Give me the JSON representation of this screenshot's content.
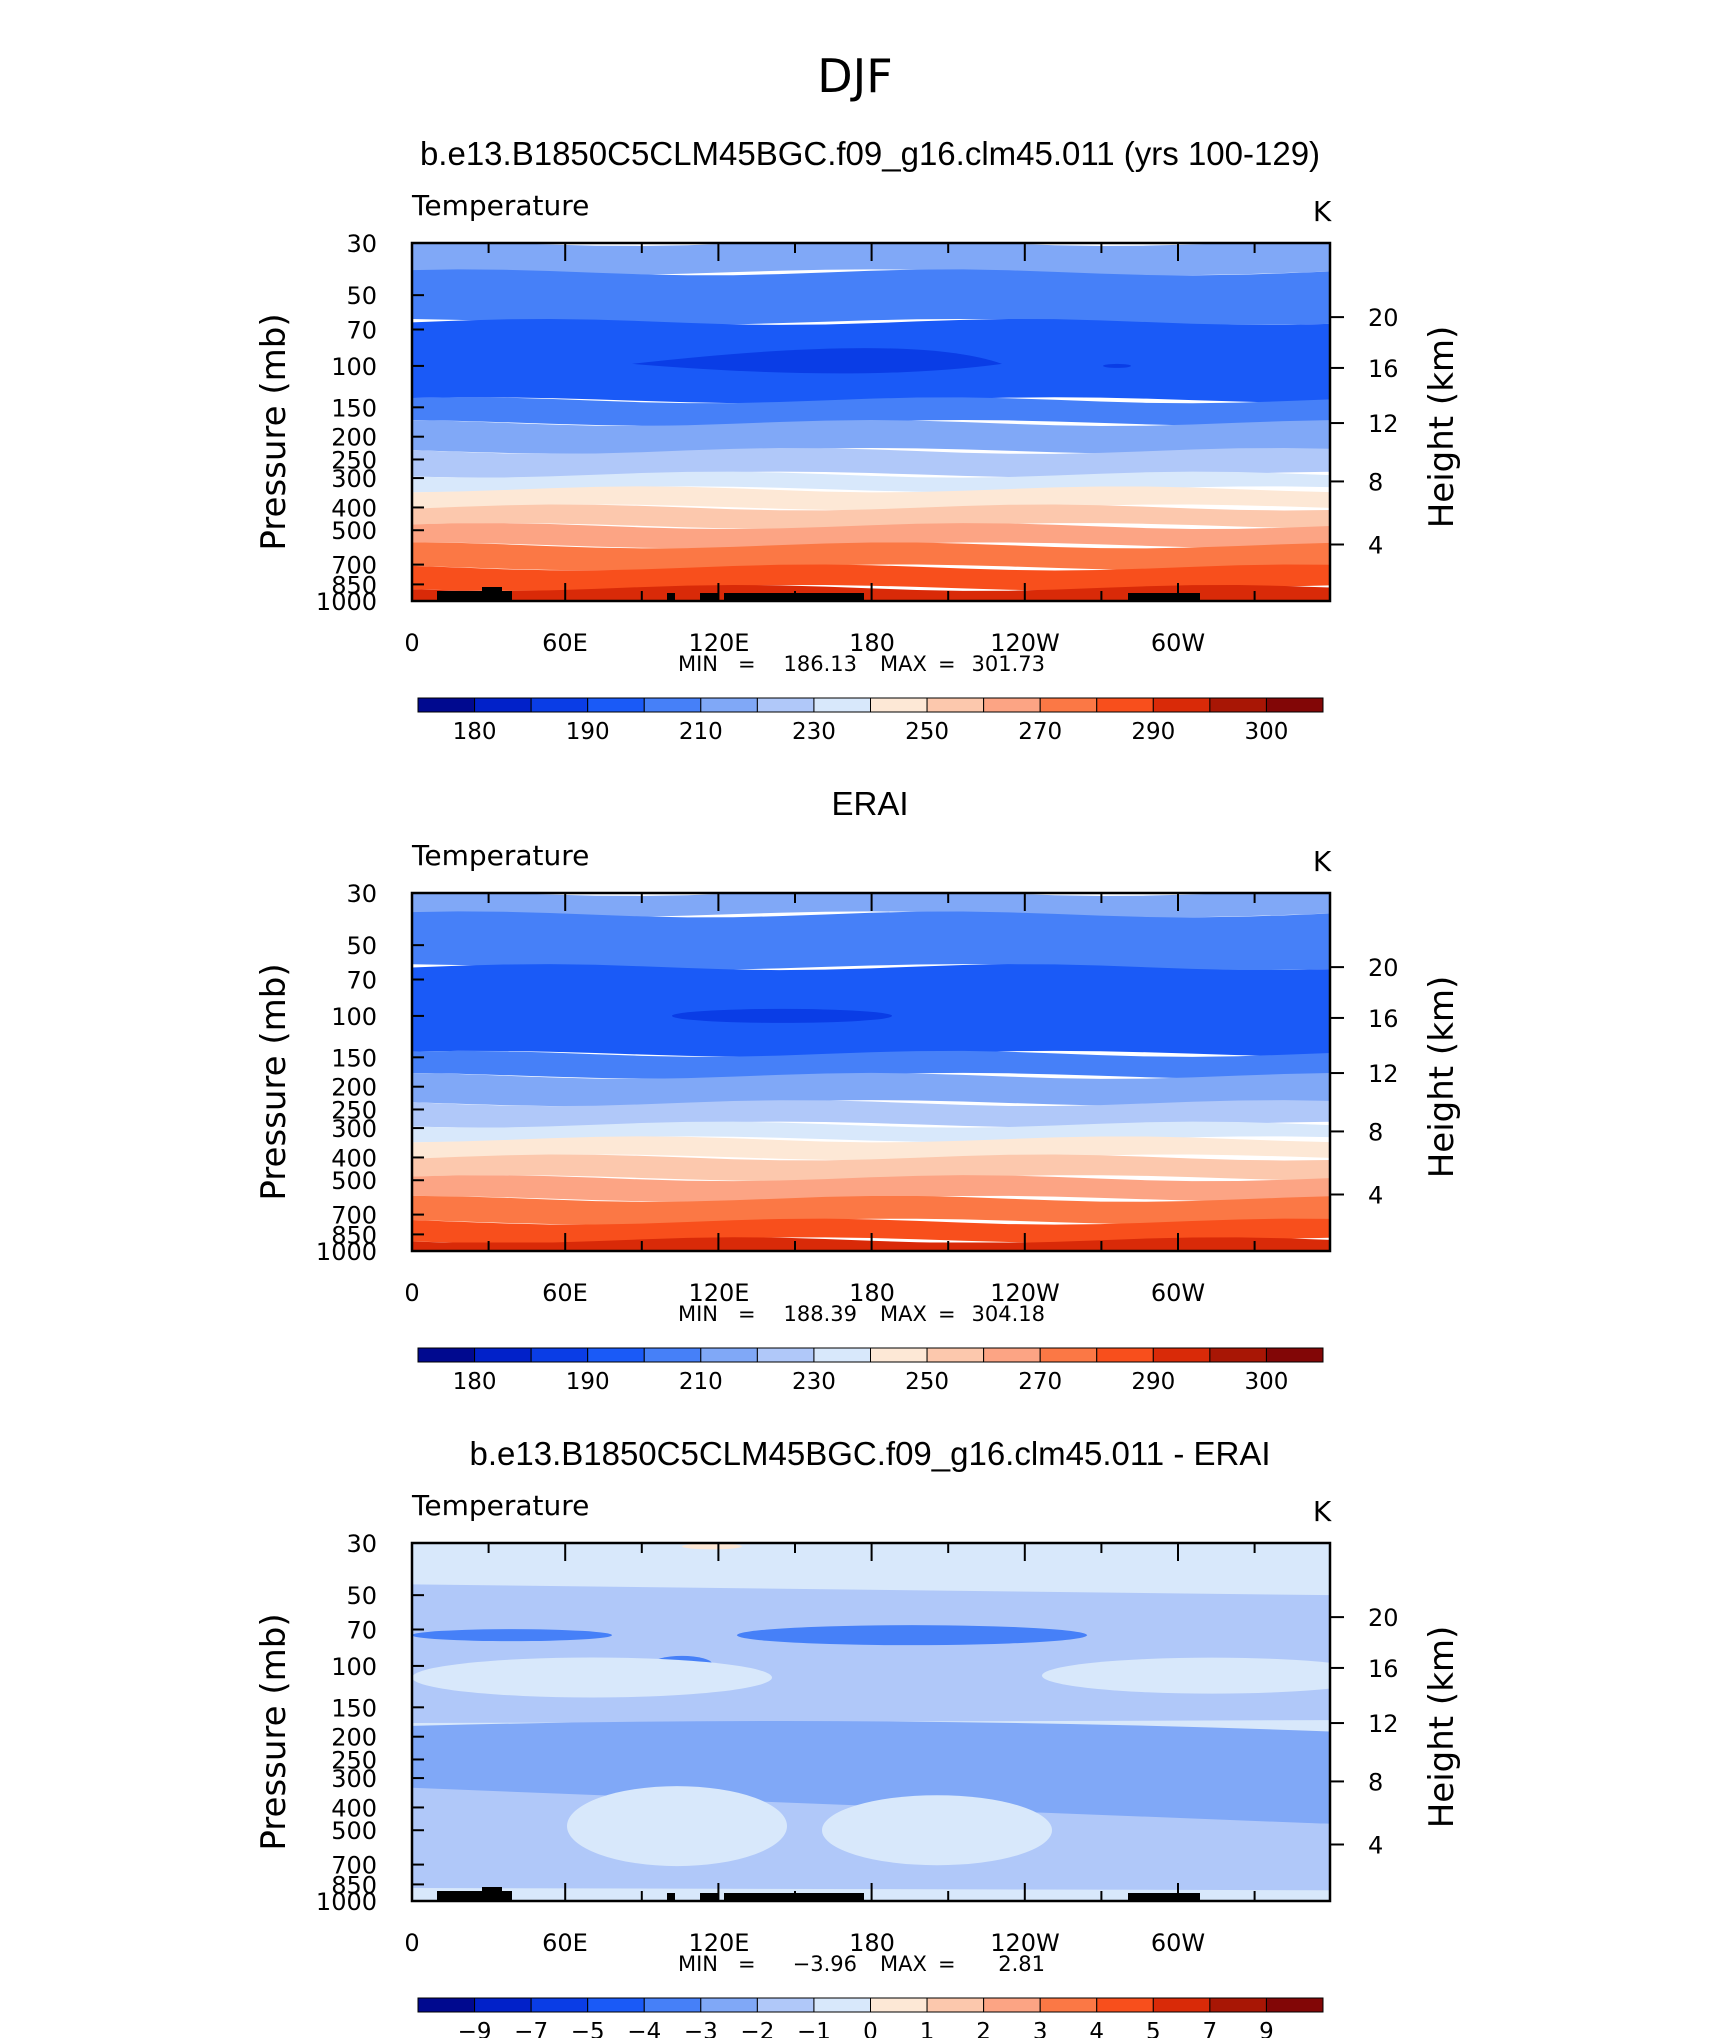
{
  "page_title": "DJF",
  "chart_data": [
    {
      "type": "heatmap",
      "title": "b.e13.B1850C5CLM45BGC.f09_g16.clm45.011 (yrs 100-129)",
      "left_label": "Temperature",
      "right_label": "K",
      "ylabel": "Pressure (mb)",
      "y2label": "Height (km)",
      "pressure_levels": [
        "30",
        "50",
        "70",
        "100",
        "150",
        "200",
        "250",
        "300",
        "400",
        "500",
        "700",
        "850",
        "1000"
      ],
      "height_ticks": [
        "20",
        "16",
        "12",
        "8",
        "4"
      ],
      "x_ticks": [
        "0",
        "60E",
        "120E",
        "180",
        "120W",
        "60W"
      ],
      "min_label": "MIN",
      "min_value": "186.13",
      "max_label": "MAX",
      "max_value": "301.73",
      "colorbar": {
        "colors": [
          "#00098f",
          "#0121c9",
          "#0a3de6",
          "#1a5af7",
          "#4680f8",
          "#80a8f7",
          "#b0c8f9",
          "#d8e8fb",
          "#fde8d6",
          "#fcc8ad",
          "#fca484",
          "#fb7845",
          "#f84f1c",
          "#d92a08",
          "#a81605",
          "#820606"
        ],
        "labels": [
          "180",
          "190",
          "210",
          "230",
          "250",
          "270",
          "290",
          "300"
        ],
        "label_boundaries": [
          1,
          3,
          5,
          7,
          9,
          11,
          13,
          15
        ]
      },
      "bands": [
        {
          "p": "30-40",
          "color": "#80a8f7"
        },
        {
          "p": "40-65",
          "color": "#4680f8"
        },
        {
          "p": "65-140",
          "color": "#1a5af7"
        },
        {
          "p": "78-115 (150E-150W)",
          "color": "#0a3de6"
        },
        {
          "p": "140-175",
          "color": "#4680f8"
        },
        {
          "p": "175-230",
          "color": "#80a8f7"
        },
        {
          "p": "230-290",
          "color": "#b0c8f9"
        },
        {
          "p": "290-335",
          "color": "#d8e8fb"
        },
        {
          "p": "335-400",
          "color": "#fde8d6"
        },
        {
          "p": "400-480",
          "color": "#fcc8ad"
        },
        {
          "p": "480-580",
          "color": "#fca484"
        },
        {
          "p": "580-720",
          "color": "#fb7845"
        },
        {
          "p": "720-880",
          "color": "#f84f1c"
        },
        {
          "p": "880-1000",
          "color": "#d92a08"
        }
      ]
    },
    {
      "type": "heatmap",
      "title": "ERAI",
      "left_label": "Temperature",
      "right_label": "K",
      "ylabel": "Pressure (mb)",
      "y2label": "Height (km)",
      "pressure_levels": [
        "30",
        "50",
        "70",
        "100",
        "150",
        "200",
        "250",
        "300",
        "400",
        "500",
        "700",
        "850",
        "1000"
      ],
      "height_ticks": [
        "20",
        "16",
        "12",
        "8",
        "4"
      ],
      "x_ticks": [
        "0",
        "60E",
        "120E",
        "180",
        "120W",
        "60W"
      ],
      "min_label": "MIN",
      "min_value": "188.39",
      "max_label": "MAX",
      "max_value": "304.18",
      "colorbar": {
        "colors": [
          "#00098f",
          "#0121c9",
          "#0a3de6",
          "#1a5af7",
          "#4680f8",
          "#80a8f7",
          "#b0c8f9",
          "#d8e8fb",
          "#fde8d6",
          "#fcc8ad",
          "#fca484",
          "#fb7845",
          "#f84f1c",
          "#d92a08",
          "#a81605",
          "#820606"
        ],
        "labels": [
          "180",
          "190",
          "210",
          "230",
          "250",
          "270",
          "290",
          "300"
        ],
        "label_boundaries": [
          1,
          3,
          5,
          7,
          9,
          11,
          13,
          15
        ]
      },
      "bands": [
        {
          "p": "30-37",
          "color": "#80a8f7"
        },
        {
          "p": "37-62",
          "color": "#4680f8"
        },
        {
          "p": "62-145",
          "color": "#1a5af7"
        },
        {
          "p": "90-105 (120E-180)",
          "color": "#0a3de6"
        },
        {
          "p": "145-180",
          "color": "#4680f8"
        },
        {
          "p": "180-235",
          "color": "#80a8f7"
        },
        {
          "p": "235-290",
          "color": "#b0c8f9"
        },
        {
          "p": "290-335",
          "color": "#d8e8fb"
        },
        {
          "p": "335-400",
          "color": "#fde8d6"
        },
        {
          "p": "400-490",
          "color": "#fcc8ad"
        },
        {
          "p": "490-600",
          "color": "#fca484"
        },
        {
          "p": "600-750",
          "color": "#fb7845"
        },
        {
          "p": "750-900",
          "color": "#f84f1c"
        },
        {
          "p": "900-1000",
          "color": "#d92a08"
        }
      ]
    },
    {
      "type": "heatmap",
      "title": "b.e13.B1850C5CLM45BGC.f09_g16.clm45.011 - ERAI",
      "left_label": "Temperature",
      "right_label": "K",
      "ylabel": "Pressure (mb)",
      "y2label": "Height (km)",
      "pressure_levels": [
        "30",
        "50",
        "70",
        "100",
        "150",
        "200",
        "250",
        "300",
        "400",
        "500",
        "700",
        "850",
        "1000"
      ],
      "height_ticks": [
        "20",
        "16",
        "12",
        "8",
        "4"
      ],
      "x_ticks": [
        "0",
        "60E",
        "120E",
        "180",
        "120W",
        "60W"
      ],
      "min_label": "MIN",
      "min_value": "−3.96",
      "max_label": "MAX",
      "max_value": "2.81",
      "colorbar": {
        "colors": [
          "#00098f",
          "#0121c9",
          "#0a3de6",
          "#1a5af7",
          "#4680f8",
          "#80a8f7",
          "#b0c8f9",
          "#d8e8fb",
          "#fde8d6",
          "#fcc8ad",
          "#fca484",
          "#fb7845",
          "#f84f1c",
          "#d92a08",
          "#a81605",
          "#820606"
        ],
        "labels": [
          "−9",
          "−7",
          "−5",
          "−4",
          "−3",
          "−2",
          "−1",
          "0",
          "1",
          "2",
          "3",
          "4",
          "5",
          "7",
          "9"
        ],
        "label_boundaries": [
          1,
          2,
          3,
          4,
          5,
          6,
          7,
          8,
          9,
          10,
          11,
          12,
          13,
          14,
          15
        ]
      },
      "bands": [
        {
          "p": "30-1000",
          "color": "#d8e8fb"
        },
        {
          "p": "42-170 mid",
          "color": "#b0c8f9"
        },
        {
          "p": "55-90",
          "color": "#80a8f7"
        },
        {
          "p": "180-470",
          "color": "#80a8f7"
        },
        {
          "p": "320-900",
          "color": "#b0c8f9"
        }
      ]
    }
  ]
}
